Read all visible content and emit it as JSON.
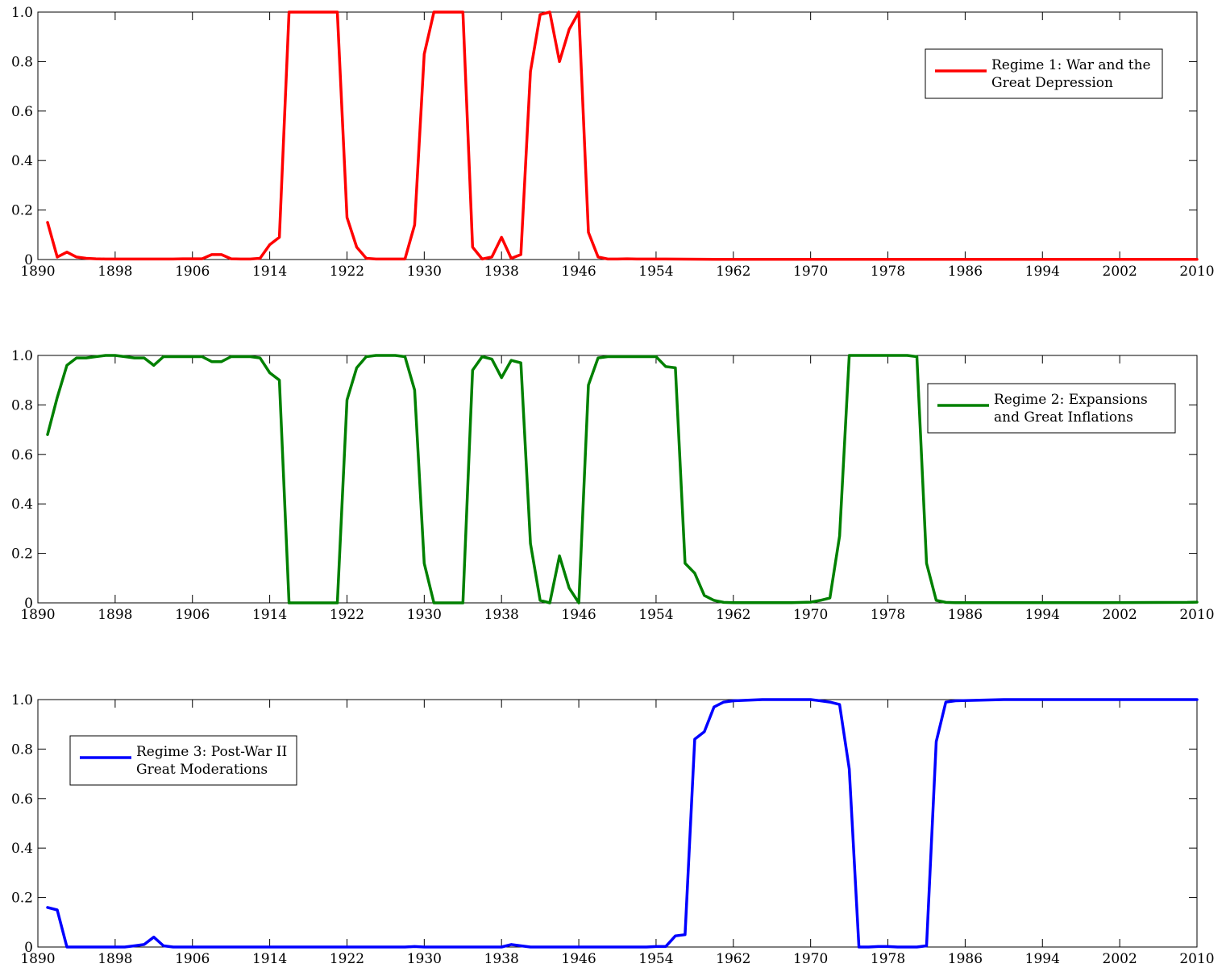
{
  "chart_data": [
    {
      "type": "line",
      "xlim": [
        1890,
        2010
      ],
      "ylim": [
        0,
        1
      ],
      "xticks": [
        1890,
        1898,
        1906,
        1914,
        1922,
        1930,
        1938,
        1946,
        1954,
        1962,
        1970,
        1978,
        1986,
        1994,
        2002,
        2010
      ],
      "yticks": [
        0,
        0.2,
        0.4,
        0.6,
        0.8,
        1.0
      ],
      "ytick_labels": [
        "0",
        "0.2",
        "0.4",
        "0.6",
        "0.8",
        "1.0"
      ],
      "legend_position": "upper-right",
      "series": [
        {
          "name_lines": [
            "Regime 1: War and the",
            "Great Depression"
          ],
          "color": "#ff0000",
          "x": [
            1891,
            1892,
            1893,
            1894,
            1895,
            1896,
            1897,
            1898,
            1899,
            1900,
            1901,
            1902,
            1903,
            1904,
            1905,
            1906,
            1907,
            1908,
            1909,
            1910,
            1911,
            1912,
            1913,
            1914,
            1915,
            1916,
            1917,
            1918,
            1919,
            1920,
            1921,
            1922,
            1923,
            1924,
            1925,
            1926,
            1927,
            1928,
            1929,
            1930,
            1931,
            1932,
            1933,
            1934,
            1935,
            1936,
            1937,
            1938,
            1939,
            1940,
            1941,
            1942,
            1943,
            1944,
            1945,
            1946,
            1947,
            1948,
            1949,
            1950,
            1951,
            1952,
            1953,
            1954,
            1955,
            1960,
            1970,
            1980,
            1990,
            2000,
            2010
          ],
          "y": [
            0.15,
            0.01,
            0.03,
            0.01,
            0.005,
            0.003,
            0.002,
            0.002,
            0.002,
            0.002,
            0.002,
            0.002,
            0.002,
            0.002,
            0.003,
            0.003,
            0.003,
            0.02,
            0.02,
            0.003,
            0.002,
            0.002,
            0.005,
            0.06,
            0.09,
            1.0,
            1.0,
            1.0,
            1.0,
            1.0,
            1.0,
            0.17,
            0.05,
            0.005,
            0.002,
            0.002,
            0.002,
            0.002,
            0.14,
            0.83,
            1.0,
            1.0,
            1.0,
            1.0,
            0.05,
            0.002,
            0.01,
            0.09,
            0.005,
            0.02,
            0.76,
            0.99,
            1.0,
            0.8,
            0.93,
            1.0,
            0.11,
            0.01,
            0.002,
            0.002,
            0.003,
            0.002,
            0.002,
            0.002,
            0.002,
            0.001,
            0.001,
            0.001,
            0.001,
            0.001,
            0.001
          ]
        }
      ]
    },
    {
      "type": "line",
      "xlim": [
        1890,
        2010
      ],
      "ylim": [
        0,
        1
      ],
      "xticks": [
        1890,
        1898,
        1906,
        1914,
        1922,
        1930,
        1938,
        1946,
        1954,
        1962,
        1970,
        1978,
        1986,
        1994,
        2002,
        2010
      ],
      "yticks": [
        0,
        0.2,
        0.4,
        0.6,
        0.8,
        1.0
      ],
      "ytick_labels": [
        "0",
        "0.2",
        "0.4",
        "0.6",
        "0.8",
        "1.0"
      ],
      "legend_position": "upper-right",
      "series": [
        {
          "name_lines": [
            "Regime 2: Expansions",
            "and Great Inflations"
          ],
          "color": "#008000",
          "x": [
            1891,
            1892,
            1893,
            1894,
            1895,
            1896,
            1897,
            1898,
            1899,
            1900,
            1901,
            1902,
            1903,
            1904,
            1905,
            1906,
            1907,
            1908,
            1909,
            1910,
            1911,
            1912,
            1913,
            1914,
            1915,
            1916,
            1917,
            1918,
            1919,
            1920,
            1921,
            1922,
            1923,
            1924,
            1925,
            1926,
            1927,
            1928,
            1929,
            1930,
            1931,
            1932,
            1933,
            1934,
            1935,
            1936,
            1937,
            1938,
            1939,
            1940,
            1941,
            1942,
            1943,
            1944,
            1945,
            1946,
            1947,
            1948,
            1949,
            1950,
            1951,
            1952,
            1953,
            1954,
            1955,
            1956,
            1957,
            1958,
            1959,
            1960,
            1961,
            1962,
            1965,
            1968,
            1970,
            1971,
            1972,
            1973,
            1974,
            1975,
            1976,
            1977,
            1978,
            1979,
            1980,
            1981,
            1982,
            1983,
            1984,
            1985,
            1990,
            2000,
            2009,
            2010
          ],
          "y": [
            0.68,
            0.83,
            0.96,
            0.99,
            0.99,
            0.995,
            1.0,
            1.0,
            0.995,
            0.99,
            0.99,
            0.96,
            0.995,
            0.995,
            0.995,
            0.995,
            0.995,
            0.975,
            0.975,
            0.995,
            0.995,
            0.995,
            0.99,
            0.93,
            0.9,
            0.0,
            0.0,
            0.0,
            0.0,
            0.0,
            0.0,
            0.82,
            0.95,
            0.995,
            1.0,
            1.0,
            1.0,
            0.995,
            0.86,
            0.16,
            0.0,
            0.0,
            0.0,
            0.0,
            0.94,
            0.995,
            0.985,
            0.91,
            0.98,
            0.97,
            0.24,
            0.01,
            0.0,
            0.19,
            0.06,
            0.0,
            0.88,
            0.99,
            0.995,
            0.995,
            0.995,
            0.995,
            0.995,
            0.995,
            0.955,
            0.95,
            0.16,
            0.12,
            0.03,
            0.01,
            0.002,
            0.001,
            0.001,
            0.001,
            0.003,
            0.01,
            0.02,
            0.27,
            1.0,
            1.0,
            1.0,
            1.0,
            1.0,
            1.0,
            1.0,
            0.995,
            0.16,
            0.01,
            0.002,
            0.001,
            0.001,
            0.001,
            0.002,
            0.003
          ]
        }
      ]
    },
    {
      "type": "line",
      "xlim": [
        1890,
        2010
      ],
      "ylim": [
        0,
        1
      ],
      "xticks": [
        1890,
        1898,
        1906,
        1914,
        1922,
        1930,
        1938,
        1946,
        1954,
        1962,
        1970,
        1978,
        1986,
        1994,
        2002,
        2010
      ],
      "yticks": [
        0,
        0.2,
        0.4,
        0.6,
        0.8,
        1.0
      ],
      "ytick_labels": [
        "0",
        "0.2",
        "0.4",
        "0.6",
        "0.8",
        "1.0"
      ],
      "legend_position": "upper-left",
      "series": [
        {
          "name_lines": [
            "Regime 3: Post-War II",
            "Great Moderations"
          ],
          "color": "#0000ff",
          "x": [
            1891,
            1892,
            1893,
            1894,
            1896,
            1898,
            1899,
            1900,
            1901,
            1902,
            1903,
            1904,
            1905,
            1906,
            1910,
            1920,
            1928,
            1929,
            1930,
            1935,
            1938,
            1939,
            1940,
            1941,
            1945,
            1950,
            1953,
            1954,
            1955,
            1956,
            1957,
            1958,
            1959,
            1960,
            1961,
            1962,
            1965,
            1968,
            1970,
            1971,
            1972,
            1973,
            1974,
            1975,
            1976,
            1977,
            1978,
            1979,
            1980,
            1981,
            1982,
            1983,
            1984,
            1985,
            1990,
            2000,
            2010
          ],
          "y": [
            0.16,
            0.15,
            0.0,
            0.0,
            0.0,
            0.0,
            0.0,
            0.005,
            0.01,
            0.04,
            0.005,
            0.0,
            0.0,
            0.0,
            0.0,
            0.0,
            0.0,
            0.002,
            0.0,
            0.0,
            0.0,
            0.01,
            0.005,
            0.0,
            0.0,
            0.0,
            0.0,
            0.002,
            0.002,
            0.045,
            0.05,
            0.84,
            0.87,
            0.97,
            0.99,
            0.995,
            1.0,
            1.0,
            1.0,
            0.995,
            0.99,
            0.98,
            0.72,
            0.0,
            0.0,
            0.002,
            0.002,
            0.0,
            0.0,
            0.0,
            0.005,
            0.83,
            0.99,
            0.995,
            1.0,
            1.0,
            1.0
          ]
        }
      ]
    }
  ]
}
